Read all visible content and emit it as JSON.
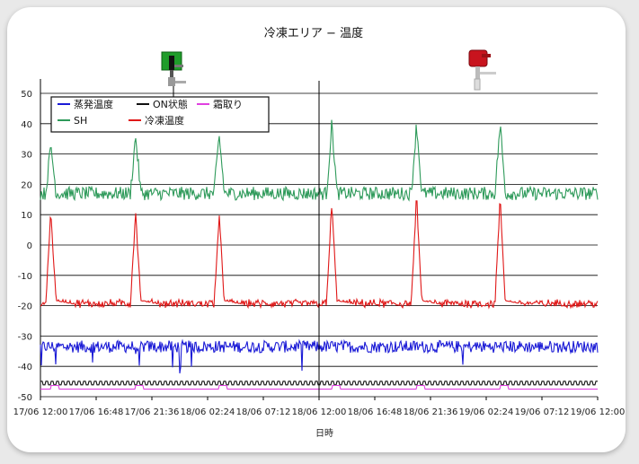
{
  "chart_data": {
    "type": "line",
    "title": "冷凍エリア − 温度",
    "xlabel": "日時",
    "ylabel": "",
    "ylim": [
      -50,
      55
    ],
    "yticks": [
      50,
      40,
      30,
      20,
      10,
      0,
      -10,
      -20,
      -30,
      -40,
      -50
    ],
    "ytick_labels": [
      "50",
      "40",
      "30",
      "20",
      "10",
      "0",
      "-10",
      "-20",
      "-30",
      "-40",
      "-50"
    ],
    "xrange_hours": [
      0,
      48
    ],
    "xtick_labels": [
      "17/06 12:00",
      "17/06 16:48",
      "17/06 21:36",
      "18/06 02:24",
      "18/06 07:12",
      "18/06 12:00",
      "18/06 16:48",
      "18/06 21:36",
      "19/06 02:24",
      "19/06 07:12",
      "19/06 12:00"
    ],
    "grid": "horizontal",
    "legend_position": "top-left",
    "marker": {
      "x_label": "18/06 12:00"
    },
    "series": [
      {
        "name": "蒸発温度",
        "color": "#1a1ad6",
        "baseline": -33.5,
        "noise": 2.0,
        "peaks": []
      },
      {
        "name": "ON状態",
        "color": "#111111",
        "baseline": -45.5,
        "noise": 0.6,
        "peaks": []
      },
      {
        "name": "霜取り",
        "color": "#e040e0",
        "baseline": -47.5,
        "noise": 0,
        "pulse_height": 1.2,
        "peaks": []
      },
      {
        "name": "SH",
        "color": "#2e9a5a",
        "baseline": 17,
        "noise": 2.2,
        "peaks": [
          {
            "x": "17/06 12:54",
            "y": 33
          },
          {
            "x": "17/06 20:12",
            "y": 36
          },
          {
            "x": "18/06 03:24",
            "y": 36
          },
          {
            "x": "18/06 13:06",
            "y": 40
          },
          {
            "x": "18/06 20:24",
            "y": 40
          },
          {
            "x": "19/06 03:36",
            "y": 40
          }
        ]
      },
      {
        "name": "冷凍温度",
        "color": "#e01818",
        "baseline": -19.5,
        "noise": 1.2,
        "peaks": [
          {
            "x": "17/06 12:54",
            "y": 11
          },
          {
            "x": "17/06 20:12",
            "y": 11
          },
          {
            "x": "18/06 03:24",
            "y": 9
          },
          {
            "x": "18/06 13:06",
            "y": 14
          },
          {
            "x": "18/06 20:24",
            "y": 16
          },
          {
            "x": "19/06 03:36",
            "y": 15
          }
        ]
      }
    ]
  },
  "icons": {
    "left": "green-sensor-icon",
    "right": "red-sensor-icon"
  }
}
